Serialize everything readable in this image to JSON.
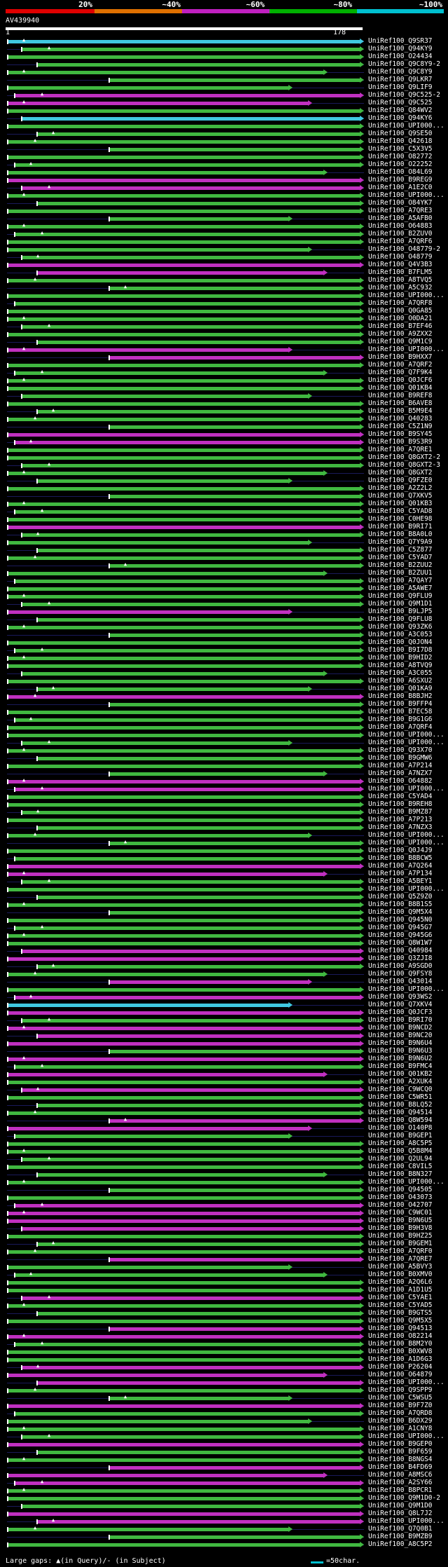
{
  "legend": {
    "items": [
      {
        "label": "20%",
        "color": "#e00000"
      },
      {
        "label": "~40%",
        "color": "#e07000"
      },
      {
        "label": "~60%",
        "color": "#c020c0"
      },
      {
        "label": "~80%",
        "color": "#00b000"
      },
      {
        "label": "~100%",
        "color": "#00c0d0"
      }
    ]
  },
  "query": {
    "id": "AV439940",
    "start": "1",
    "end": "178"
  },
  "hit_labels": [
    "UniRef100_Q9SR37",
    "UniRef100_Q94KY9",
    "UniRef100_O24434",
    "UniRef100_Q9C8Y9-2",
    "UniRef100_Q9C8Y9",
    "UniRef100_Q9LKR7",
    "UniRef100_Q9LIF9",
    "UniRef100_Q9C525-2",
    "UniRef100_Q9C525",
    "UniRef100_Q84WV2",
    "UniRef100_Q94KY6",
    "UniRef100_UPI000...",
    "UniRef100_Q9SE50",
    "UniRef100_Q42618",
    "UniRef100_C5X3V5",
    "UniRef100_O82772",
    "UniRef100_O22252",
    "UniRef100_O84L69",
    "UniRef100_B9REG9",
    "UniRef100_A1E2C0",
    "UniRef100_UPI000...",
    "UniRef100_O84YK7",
    "UniRef100_A7QRE3",
    "UniRef100_A5AFB0",
    "UniRef100_O64883",
    "UniRef100_B2ZUV0",
    "UniRef100_A7QRF6",
    "UniRef100_O48779-2",
    "UniRef100_O48779",
    "UniRef100_Q4V3B3",
    "UniRef100_B7FLM5",
    "UniRef100_A8TVQ5",
    "UniRef100_A5C932",
    "UniRef100_UPI000...",
    "UniRef100_A7QRF8",
    "UniRef100_Q0GA85",
    "UniRef100_O0DA21",
    "UniRef100_B7EF46",
    "UniRef100_A9ZXX2",
    "UniRef100_Q9M1C9",
    "UniRef100_UPI000...",
    "UniRef100_B9HXX7",
    "UniRef100_A7QRF2",
    "UniRef100_Q7F9K4",
    "UniRef100_Q0JCF6",
    "UniRef100_Q01KB4",
    "UniRef100_B9REF8",
    "UniRef100_B6AVE8",
    "UniRef100_B5M9E4",
    "UniRef100_Q40283",
    "UniRef100_C5Z1N9",
    "UniRef100_B9SY45",
    "UniRef100_B9S3R9",
    "UniRef100_A7QRE1",
    "UniRef100_Q8GXT2-2",
    "UniRef100_Q8GXT2-3",
    "UniRef100_Q8GXT2",
    "UniRef100_Q9FZE0",
    "UniRef100_A2Z2L2",
    "UniRef100_Q7XKV5",
    "UniRef100_Q01KB3",
    "UniRef100_C5YAD8",
    "UniRef100_C0HE98",
    "UniRef100_B9RI71",
    "UniRef100_B8A0L0",
    "UniRef100_Q7Y9A9",
    "UniRef100_C5Z877",
    "UniRef100_C5YAD7",
    "UniRef100_B2ZUU2",
    "UniRef100_B2ZUU1",
    "UniRef100_A7QAY7",
    "UniRef100_A5AWE7",
    "UniRef100_Q9FLU9",
    "UniRef100_Q9M1D1",
    "UniRef100_B9LJP5",
    "UniRef100_Q9FLU8",
    "UniRef100_Q93ZK6",
    "UniRef100_A3C053",
    "UniRef100_Q0JON4",
    "UniRef100_B9I7D8",
    "UniRef100_B9HID2",
    "UniRef100_A8TVQ9",
    "UniRef100_A3C055",
    "UniRef100_A6SXU2",
    "UniRef100_Q01KA9",
    "UniRef100_B8BJH2",
    "UniRef100_B9FFP4",
    "UniRef100_B7EC58",
    "UniRef100_B9G1G6",
    "UniRef100_A7QRF4",
    "UniRef100_UPI000...",
    "UniRef100_UPI000...",
    "UniRef100_Q93X70",
    "UniRef100_B9GMW6",
    "UniRef100_A7P214",
    "UniRef100_A7NZX7",
    "UniRef100_O64882",
    "UniRef100_UPI000...",
    "UniRef100_C5YAD4",
    "UniRef100_B9REH8",
    "UniRef100_B9MZ87",
    "UniRef100_A7P213",
    "UniRef100_A7NZX3",
    "UniRef100_UPI000...",
    "UniRef100_UPI000...",
    "UniRef100_Q0J4J9",
    "UniRef100_B8BCW5",
    "UniRef100_A7Q264",
    "UniRef100_A7P134",
    "UniRef100_A5BEY1",
    "UniRef100_UPI000...",
    "UniRef100_Q5Z9Z0",
    "UniRef100_B8B1S5",
    "UniRef100_Q9M5X4",
    "UniRef100_Q945N0",
    "UniRef100_Q945G7",
    "UniRef100_Q945G6",
    "UniRef100_Q8W1W7",
    "UniRef100_Q40984",
    "UniRef100_Q3ZJI8",
    "UniRef100_A9SGD0",
    "UniRef100_Q9FSY8",
    "UniRef100_Q43014",
    "UniRef100_UPI000...",
    "UniRef100_Q93WS2",
    "UniRef100_Q7XKV4",
    "UniRef100_Q0JCF3",
    "UniRef100_B9RI70",
    "UniRef100_B9NCD2",
    "UniRef100_B9NC20",
    "UniRef100_B9N6U4",
    "UniRef100_B9N6U3",
    "UniRef100_B9N6U2",
    "UniRef100_B9FMC4",
    "UniRef100_Q01KB2",
    "UniRef100_A2XUK4",
    "UniRef100_C9WCQ0",
    "UniRef100_C5WR51",
    "UniRef100_B8LQ52",
    "UniRef100_Q94514",
    "UniRef100_Q8W594",
    "UniRef100_O140P8",
    "UniRef100_B9GEP1",
    "UniRef100_A8C5P5",
    "UniRef100_Q5B8M4",
    "UniRef100_Q2UL94",
    "UniRef100_C8VIL5",
    "UniRef100_B8N327",
    "UniRef100_UPI000...",
    "UniRef100_Q94505",
    "UniRef100_O43073",
    "UniRef100_O42707",
    "UniRef100_C9WC01",
    "UniRef100_B9N6U5",
    "UniRef100_B9H3V8",
    "UniRef100_B9HZ25",
    "UniRef100_B9GEM1",
    "UniRef100_A7QRF0",
    "UniRef100_A7QRE7",
    "UniRef100_A5BVY3",
    "UniRef100_B0XMV0",
    "UniRef100_A2Q6L6",
    "UniRef100_A1D1U5",
    "UniRef100_C5YAE1",
    "UniRef100_C5YAD5",
    "UniRef100_B9GTS5",
    "UniRef100_Q9M5X5",
    "UniRef100_Q94513",
    "UniRef100_O82214",
    "UniRef100_B8M2Y0",
    "UniRef100_B0XWV8",
    "UniRef100_A1D6G3",
    "UniRef100_P26204",
    "UniRef100_O64879",
    "UniRef100_UPI000...",
    "UniRef100_Q9SPP9",
    "UniRef100_C5WSU5",
    "UniRef100_B9F7Z0",
    "UniRef100_A7QRD8",
    "UniRef100_B6DX29",
    "UniRef100_A1CNY8",
    "UniRef100_UPI000...",
    "UniRef100_B9GEP0",
    "UniRef100_B9F659",
    "UniRef100_B8NGS4",
    "UniRef100_B4FD69",
    "UniRef100_A8MSC6",
    "UniRef100_A2SY66",
    "UniRef100_B8PCR1",
    "UniRef100_Q9M1D0-2",
    "UniRef100_Q9M1D0",
    "UniRef100_Q8L7J2",
    "UniRef100_UPI000...",
    "UniRef100_Q7Q0B1",
    "UniRef100_B9MZB9",
    "UniRef100_A8C5P2"
  ],
  "footer": {
    "text": "Large gaps: ▲(in Query)/- (in Subject)",
    "scale": "=50char.",
    "scale_color": "#00c0d0"
  }
}
